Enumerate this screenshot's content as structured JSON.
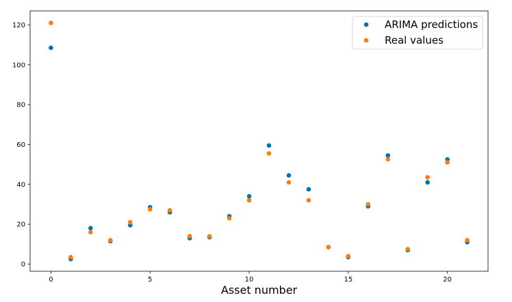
{
  "chart_data": {
    "type": "scatter",
    "title": "",
    "xlabel": "Asset number",
    "ylabel": "",
    "xlim": [
      -1.05,
      22.05
    ],
    "ylim": [
      -3.6,
      127
    ],
    "xticks": [
      0,
      5,
      10,
      15,
      20
    ],
    "yticks": [
      0,
      20,
      40,
      60,
      80,
      100,
      120
    ],
    "grid": false,
    "legend_position": "top-right",
    "x": [
      0,
      1,
      2,
      3,
      4,
      5,
      6,
      7,
      8,
      9,
      10,
      11,
      12,
      13,
      14,
      15,
      16,
      17,
      18,
      19,
      20,
      21
    ],
    "series": [
      {
        "name": "ARIMA predictions",
        "color": "#0072b2",
        "values": [
          108.5,
          2.5,
          18,
          11.5,
          19.5,
          28.5,
          26,
          13,
          13.5,
          24,
          34,
          59.5,
          44.5,
          37.5,
          8.5,
          3.5,
          29,
          54.5,
          7,
          41,
          52.5,
          11
        ]
      },
      {
        "name": "Real values",
        "color": "#ff7f0e",
        "values": [
          121,
          3.5,
          16,
          12,
          21,
          27.5,
          27,
          14,
          14,
          23,
          32,
          55.5,
          41,
          32,
          8.5,
          4,
          30,
          52.5,
          7.5,
          43.5,
          51,
          12
        ]
      }
    ]
  }
}
